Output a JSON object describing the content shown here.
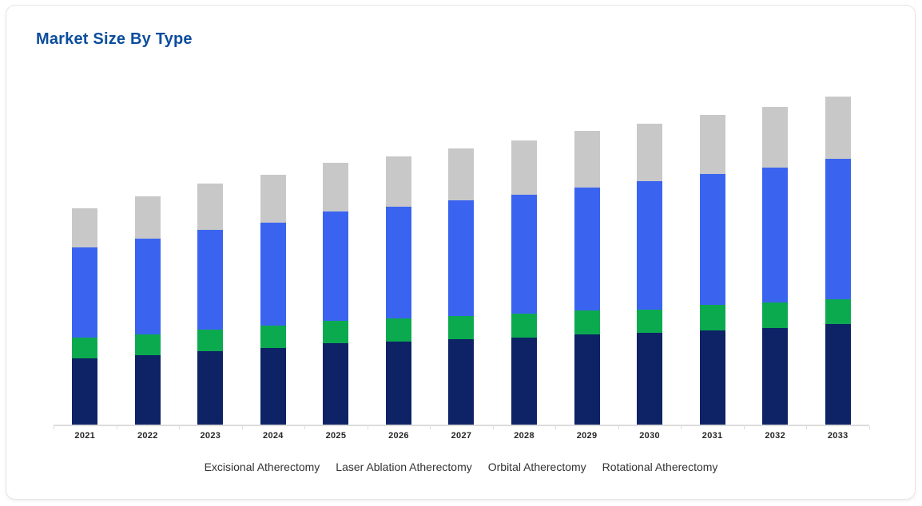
{
  "chart_data": {
    "type": "bar",
    "stacked": true,
    "title": "Market Size By Type",
    "title_color": "#0b4d9d",
    "categories": [
      "2021",
      "2022",
      "2023",
      "2024",
      "2025",
      "2026",
      "2027",
      "2028",
      "2029",
      "2030",
      "2031",
      "2032",
      "2033"
    ],
    "series": [
      {
        "name": "Excisional Atherectomy",
        "color": "#0d2365",
        "values": [
          83,
          87,
          92,
          96,
          102,
          104,
          107,
          109,
          113,
          115,
          118,
          121,
          126
        ]
      },
      {
        "name": "Laser Ablation Atherectomy",
        "color": "#0caa4f",
        "values": [
          26,
          26,
          27,
          28,
          28,
          29,
          29,
          30,
          30,
          29,
          32,
          32,
          31
        ]
      },
      {
        "name": "Orbital Atherectomy",
        "color": "#3a64f0",
        "values": [
          113,
          120,
          125,
          129,
          137,
          140,
          145,
          149,
          154,
          161,
          164,
          169,
          176
        ]
      },
      {
        "name": "Rotational Atherectomy",
        "color": "#c8c8c8",
        "values": [
          49,
          53,
          58,
          60,
          61,
          63,
          65,
          68,
          71,
          72,
          74,
          76,
          78
        ]
      }
    ],
    "totals": [
      271,
      286,
      302,
      313,
      328,
      336,
      346,
      356,
      368,
      377,
      388,
      398,
      411
    ],
    "value_units": "relative units (y-axis unlabeled)",
    "xlabel": "",
    "ylabel": "",
    "y_axis_visible": false,
    "grid": false,
    "legend_position": "bottom",
    "legend_marker_visible": false,
    "axis_color": "#dcdcdc"
  }
}
